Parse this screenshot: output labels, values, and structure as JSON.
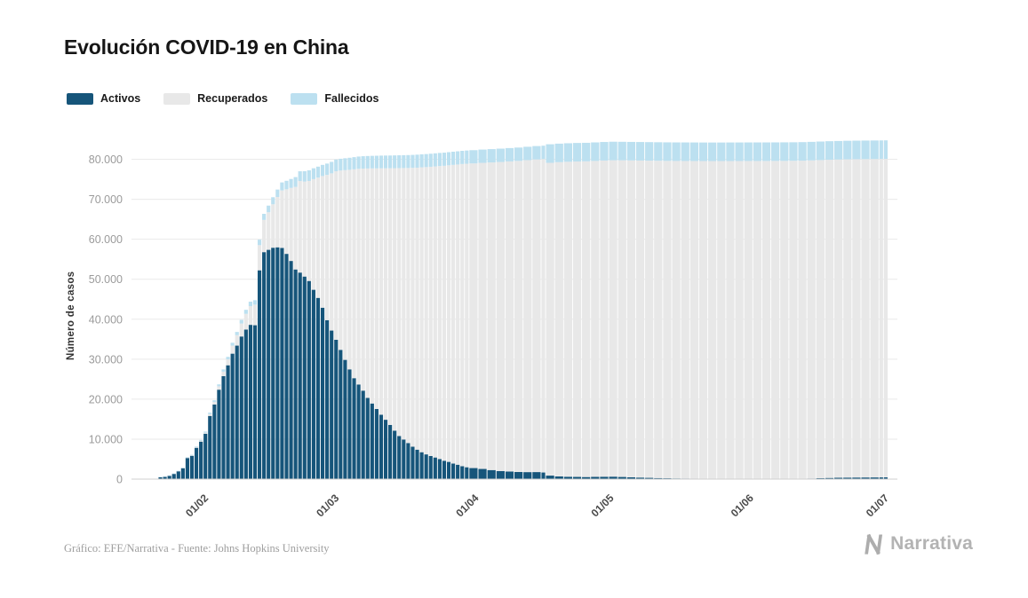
{
  "footer": {
    "credit": "Gráfico: EFE/Narrativa - Fuente: Johns Hopkins University",
    "logo_text": "Narrativa"
  },
  "colors": {
    "grid": "#EAEAEA",
    "baseline": "#CFCFCF",
    "y_tick_label": "#9B9B9B",
    "x_tick_label": "#4A4A4A",
    "brand_gray": "#B3B3B3"
  },
  "chart_data": {
    "type": "bar",
    "stacked": true,
    "title": "Evolución COVID-19 en China",
    "xlabel": "",
    "ylabel": "Número de casos",
    "ylim": [
      0,
      87000
    ],
    "grid": true,
    "legend_position": "top-left",
    "x_domain": [
      "2020-01-16",
      "2020-07-04"
    ],
    "x_ticks": [
      {
        "label": "01/02",
        "date": "2020-02-01"
      },
      {
        "label": "01/03",
        "date": "2020-03-01"
      },
      {
        "label": "01/04",
        "date": "2020-04-01"
      },
      {
        "label": "01/05",
        "date": "2020-05-01"
      },
      {
        "label": "01/06",
        "date": "2020-06-01"
      },
      {
        "label": "01/07",
        "date": "2020-07-01"
      }
    ],
    "y_ticks": [
      {
        "label": "0",
        "value": 0
      },
      {
        "label": "10.000",
        "value": 10000
      },
      {
        "label": "20.000",
        "value": 20000
      },
      {
        "label": "30.000",
        "value": 30000
      },
      {
        "label": "40.000",
        "value": 40000
      },
      {
        "label": "50.000",
        "value": 50000
      },
      {
        "label": "60.000",
        "value": 60000
      },
      {
        "label": "70.000",
        "value": 70000
      },
      {
        "label": "80.000",
        "value": 80000
      }
    ],
    "series": [
      {
        "key": "a",
        "name": "Activos",
        "color": "#16557A"
      },
      {
        "key": "r",
        "name": "Recuperados",
        "color": "#E8E8E8"
      },
      {
        "key": "f",
        "name": "Fallecidos",
        "color": "#BCE0F0"
      }
    ],
    "points": [
      {
        "d": "2020-01-22",
        "a": 503,
        "r": 28,
        "f": 17
      },
      {
        "d": "2020-01-23",
        "a": 595,
        "r": 30,
        "f": 18
      },
      {
        "d": "2020-01-24",
        "a": 858,
        "r": 36,
        "f": 26
      },
      {
        "d": "2020-01-25",
        "a": 1325,
        "r": 39,
        "f": 42
      },
      {
        "d": "2020-01-26",
        "a": 1970,
        "r": 49,
        "f": 56
      },
      {
        "d": "2020-01-27",
        "a": 2737,
        "r": 58,
        "f": 82
      },
      {
        "d": "2020-01-28",
        "a": 5277,
        "r": 101,
        "f": 131
      },
      {
        "d": "2020-01-29",
        "a": 5834,
        "r": 120,
        "f": 133
      },
      {
        "d": "2020-01-30",
        "a": 7835,
        "r": 135,
        "f": 171
      },
      {
        "d": "2020-01-31",
        "a": 9375,
        "r": 214,
        "f": 213
      },
      {
        "d": "2020-02-01",
        "a": 11357,
        "r": 275,
        "f": 259
      },
      {
        "d": "2020-02-02",
        "a": 15806,
        "r": 463,
        "f": 361
      },
      {
        "d": "2020-02-03",
        "a": 18677,
        "r": 614,
        "f": 425
      },
      {
        "d": "2020-02-04",
        "a": 22373,
        "r": 843,
        "f": 491
      },
      {
        "d": "2020-02-05",
        "a": 25762,
        "r": 1115,
        "f": 563
      },
      {
        "d": "2020-02-06",
        "a": 28477,
        "r": 1477,
        "f": 633
      },
      {
        "d": "2020-02-07",
        "a": 31381,
        "r": 2011,
        "f": 718
      },
      {
        "d": "2020-02-08",
        "a": 33393,
        "r": 2616,
        "f": 805
      },
      {
        "d": "2020-02-09",
        "a": 35680,
        "r": 3244,
        "f": 905
      },
      {
        "d": "2020-02-10",
        "a": 37396,
        "r": 3946,
        "f": 1012
      },
      {
        "d": "2020-02-11",
        "a": 38591,
        "r": 4683,
        "f": 1112
      },
      {
        "d": "2020-02-12",
        "a": 38492,
        "r": 5150,
        "f": 1117
      },
      {
        "d": "2020-02-13",
        "a": 52231,
        "r": 6295,
        "f": 1369
      },
      {
        "d": "2020-02-14",
        "a": 56779,
        "r": 8058,
        "f": 1521
      },
      {
        "d": "2020-02-15",
        "a": 57355,
        "r": 9395,
        "f": 1663
      },
      {
        "d": "2020-02-16",
        "a": 57882,
        "r": 10865,
        "f": 1766
      },
      {
        "d": "2020-02-17",
        "a": 57987,
        "r": 12583,
        "f": 1864
      },
      {
        "d": "2020-02-18",
        "a": 57831,
        "r": 14376,
        "f": 2004
      },
      {
        "d": "2020-02-19",
        "a": 56346,
        "r": 16155,
        "f": 2118
      },
      {
        "d": "2020-02-20",
        "a": 54575,
        "r": 18264,
        "f": 2238
      },
      {
        "d": "2020-02-21",
        "a": 52448,
        "r": 20659,
        "f": 2443
      },
      {
        "d": "2020-02-22",
        "a": 51668,
        "r": 22888,
        "f": 2445
      },
      {
        "d": "2020-02-23",
        "a": 50673,
        "r": 23757,
        "f": 2592
      },
      {
        "d": "2020-02-24",
        "a": 49563,
        "r": 25015,
        "f": 2663
      },
      {
        "d": "2020-02-25",
        "a": 47363,
        "r": 27676,
        "f": 2715
      },
      {
        "d": "2020-02-26",
        "a": 45338,
        "r": 30084,
        "f": 2744
      },
      {
        "d": "2020-02-27",
        "a": 42882,
        "r": 32930,
        "f": 2788
      },
      {
        "d": "2020-02-28",
        "a": 39762,
        "r": 36329,
        "f": 2837
      },
      {
        "d": "2020-02-29",
        "a": 37164,
        "r": 39320,
        "f": 2872
      },
      {
        "d": "2020-03-01",
        "a": 34855,
        "r": 42162,
        "f": 2915
      },
      {
        "d": "2020-03-02",
        "a": 32337,
        "r": 44854,
        "f": 2945
      },
      {
        "d": "2020-03-03",
        "a": 29830,
        "r": 47450,
        "f": 2981
      },
      {
        "d": "2020-03-04",
        "a": 27457,
        "r": 49914,
        "f": 3015
      },
      {
        "d": "2020-03-05",
        "a": 25253,
        "r": 52240,
        "f": 3044
      },
      {
        "d": "2020-03-06",
        "a": 23676,
        "r": 53944,
        "f": 3070
      },
      {
        "d": "2020-03-07",
        "a": 22134,
        "r": 55539,
        "f": 3097
      },
      {
        "d": "2020-03-08",
        "a": 20315,
        "r": 57388,
        "f": 3120
      },
      {
        "d": "2020-03-09",
        "a": 18920,
        "r": 58804,
        "f": 3136
      },
      {
        "d": "2020-03-10",
        "a": 17545,
        "r": 60181,
        "f": 3161
      },
      {
        "d": "2020-03-11",
        "a": 16104,
        "r": 61644,
        "f": 3173
      },
      {
        "d": "2020-03-12",
        "a": 14851,
        "r": 62901,
        "f": 3180
      },
      {
        "d": "2020-03-13",
        "a": 13560,
        "r": 64196,
        "f": 3189
      },
      {
        "d": "2020-03-14",
        "a": 12124,
        "r": 65660,
        "f": 3193
      },
      {
        "d": "2020-03-15",
        "a": 10783,
        "r": 67017,
        "f": 3203
      },
      {
        "d": "2020-03-16",
        "a": 9906,
        "r": 67910,
        "f": 3217
      },
      {
        "d": "2020-03-17",
        "a": 9030,
        "r": 68798,
        "f": 3230
      },
      {
        "d": "2020-03-18",
        "a": 8106,
        "r": 69755,
        "f": 3241
      },
      {
        "d": "2020-03-19",
        "a": 7372,
        "r": 70535,
        "f": 3249
      },
      {
        "d": "2020-03-20",
        "a": 6731,
        "r": 71266,
        "f": 3253
      },
      {
        "d": "2020-03-21",
        "a": 6189,
        "r": 71857,
        "f": 3259
      },
      {
        "d": "2020-03-22",
        "a": 5770,
        "r": 72362,
        "f": 3265
      },
      {
        "d": "2020-03-23",
        "a": 5408,
        "r": 72814,
        "f": 3274
      },
      {
        "d": "2020-03-24",
        "a": 5030,
        "r": 73280,
        "f": 3281
      },
      {
        "d": "2020-03-25",
        "a": 4603,
        "r": 73773,
        "f": 3285
      },
      {
        "d": "2020-03-26",
        "a": 4310,
        "r": 74181,
        "f": 3291
      },
      {
        "d": "2020-03-27",
        "a": 3881,
        "r": 74720,
        "f": 3296
      },
      {
        "d": "2020-03-28",
        "a": 3600,
        "r": 75100,
        "f": 3299
      },
      {
        "d": "2020-03-29",
        "a": 3236,
        "r": 75582,
        "f": 3304
      },
      {
        "d": "2020-03-30",
        "a": 2967,
        "r": 75923,
        "f": 3308
      },
      {
        "d": "2020-03-31",
        "a": 2764,
        "r": 76206,
        "f": 3309
      },
      {
        "d": "2020-04-02",
        "a": 2545,
        "r": 76565,
        "f": 3322
      },
      {
        "d": "2020-04-04",
        "a": 2267,
        "r": 76946,
        "f": 3330
      },
      {
        "d": "2020-04-06",
        "a": 2020,
        "r": 77310,
        "f": 3335
      },
      {
        "d": "2020-04-08",
        "a": 1905,
        "r": 77567,
        "f": 3337
      },
      {
        "d": "2020-04-10",
        "a": 1785,
        "r": 77816,
        "f": 3340
      },
      {
        "d": "2020-04-12",
        "a": 1752,
        "r": 78039,
        "f": 3343
      },
      {
        "d": "2020-04-14",
        "a": 1761,
        "r": 78200,
        "f": 3345
      },
      {
        "d": "2020-04-16",
        "a": 1656,
        "r": 78401,
        "f": 3346
      },
      {
        "d": "2020-04-17",
        "a": 878,
        "r": 78246,
        "f": 4636
      },
      {
        "d": "2020-04-19",
        "a": 680,
        "r": 78600,
        "f": 4636
      },
      {
        "d": "2020-04-21",
        "a": 600,
        "r": 78780,
        "f": 4636
      },
      {
        "d": "2020-04-23",
        "a": 550,
        "r": 78900,
        "f": 4636
      },
      {
        "d": "2020-04-25",
        "a": 520,
        "r": 78970,
        "f": 4637
      },
      {
        "d": "2020-04-27",
        "a": 560,
        "r": 79030,
        "f": 4637
      },
      {
        "d": "2020-04-29",
        "a": 600,
        "r": 79090,
        "f": 4637
      },
      {
        "d": "2020-05-01",
        "a": 620,
        "r": 79140,
        "f": 4637
      },
      {
        "d": "2020-05-03",
        "a": 540,
        "r": 79200,
        "f": 4637
      },
      {
        "d": "2020-05-05",
        "a": 460,
        "r": 79250,
        "f": 4637
      },
      {
        "d": "2020-05-07",
        "a": 390,
        "r": 79300,
        "f": 4633
      },
      {
        "d": "2020-05-09",
        "a": 320,
        "r": 79340,
        "f": 4633
      },
      {
        "d": "2020-05-11",
        "a": 260,
        "r": 79370,
        "f": 4633
      },
      {
        "d": "2020-05-13",
        "a": 210,
        "r": 79395,
        "f": 4633
      },
      {
        "d": "2020-05-15",
        "a": 175,
        "r": 79415,
        "f": 4634
      },
      {
        "d": "2020-05-17",
        "a": 150,
        "r": 79430,
        "f": 4634
      },
      {
        "d": "2020-05-19",
        "a": 130,
        "r": 79445,
        "f": 4634
      },
      {
        "d": "2020-05-21",
        "a": 110,
        "r": 79455,
        "f": 4634
      },
      {
        "d": "2020-05-23",
        "a": 95,
        "r": 79465,
        "f": 4634
      },
      {
        "d": "2020-05-25",
        "a": 88,
        "r": 79475,
        "f": 4634
      },
      {
        "d": "2020-05-27",
        "a": 82,
        "r": 79485,
        "f": 4638
      },
      {
        "d": "2020-05-29",
        "a": 78,
        "r": 79495,
        "f": 4638
      },
      {
        "d": "2020-05-31",
        "a": 72,
        "r": 79505,
        "f": 4638
      },
      {
        "d": "2020-06-02",
        "a": 66,
        "r": 79515,
        "f": 4638
      },
      {
        "d": "2020-06-04",
        "a": 62,
        "r": 79525,
        "f": 4638
      },
      {
        "d": "2020-06-06",
        "a": 60,
        "r": 79535,
        "f": 4638
      },
      {
        "d": "2020-06-08",
        "a": 58,
        "r": 79545,
        "f": 4638
      },
      {
        "d": "2020-06-10",
        "a": 64,
        "r": 79555,
        "f": 4638
      },
      {
        "d": "2020-06-12",
        "a": 90,
        "r": 79565,
        "f": 4638
      },
      {
        "d": "2020-06-14",
        "a": 150,
        "r": 79575,
        "f": 4638
      },
      {
        "d": "2020-06-16",
        "a": 220,
        "r": 79585,
        "f": 4638
      },
      {
        "d": "2020-06-18",
        "a": 290,
        "r": 79595,
        "f": 4638
      },
      {
        "d": "2020-06-20",
        "a": 340,
        "r": 79605,
        "f": 4638
      },
      {
        "d": "2020-06-22",
        "a": 380,
        "r": 79615,
        "f": 4638
      },
      {
        "d": "2020-06-24",
        "a": 400,
        "r": 79625,
        "f": 4639
      },
      {
        "d": "2020-06-26",
        "a": 412,
        "r": 79635,
        "f": 4640
      },
      {
        "d": "2020-06-28",
        "a": 422,
        "r": 79645,
        "f": 4640
      },
      {
        "d": "2020-06-30",
        "a": 432,
        "r": 79655,
        "f": 4641
      },
      {
        "d": "2020-07-01",
        "a": 440,
        "r": 79660,
        "f": 4641
      }
    ]
  }
}
